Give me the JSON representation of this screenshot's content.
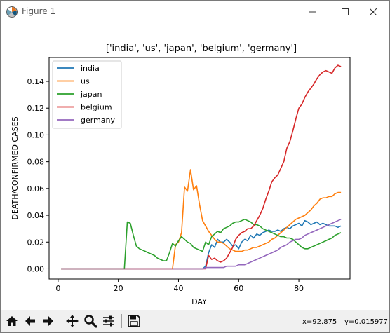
{
  "window": {
    "title": "Figure 1",
    "controls": [
      "minimize",
      "maximize",
      "close"
    ]
  },
  "toolbar": {
    "buttons": [
      {
        "name": "home-button",
        "icon": "home-icon"
      },
      {
        "name": "back-button",
        "icon": "arrow-left-icon"
      },
      {
        "name": "forward-button",
        "icon": "arrow-right-icon"
      },
      {
        "name": "pan-button",
        "icon": "move-arrows-icon"
      },
      {
        "name": "zoom-button",
        "icon": "magnifier-icon"
      },
      {
        "name": "subplots-button",
        "icon": "sliders-icon"
      },
      {
        "name": "save-button",
        "icon": "floppy-disk-icon"
      }
    ],
    "coord_x": "x=92.875",
    "coord_y": "y=0.015977"
  },
  "colors": {
    "india": "#1f77b4",
    "us": "#ff7f0e",
    "japan": "#2ca02c",
    "belgium": "#d62728",
    "germany": "#9467bd"
  },
  "chart_data": {
    "type": "line",
    "title": "['india', 'us', 'japan', 'belgium', 'germany']",
    "xlabel": "DAY",
    "ylabel": "DEATH/CONFIRMED CASES",
    "xlim": [
      -3,
      97
    ],
    "ylim": [
      -0.0076,
      0.1578
    ],
    "xticks": [
      0,
      20,
      40,
      60,
      80
    ],
    "xtick_labels": [
      "0",
      "20",
      "40",
      "60",
      "80"
    ],
    "yticks": [
      0.0,
      0.02,
      0.04,
      0.06,
      0.08,
      0.1,
      0.12,
      0.14
    ],
    "ytick_labels": [
      "0.00",
      "0.02",
      "0.04",
      "0.06",
      "0.08",
      "0.10",
      "0.12",
      "0.14"
    ],
    "grid": false,
    "legend_position": "upper-left",
    "series": [
      {
        "name": "india",
        "color": "#1f77b4",
        "points": [
          [
            1,
            0
          ],
          [
            10,
            0
          ],
          [
            20,
            0
          ],
          [
            30,
            0
          ],
          [
            40,
            0
          ],
          [
            48,
            0
          ],
          [
            49,
            0.002
          ],
          [
            50,
            0.012
          ],
          [
            51,
            0.018
          ],
          [
            52,
            0.016
          ],
          [
            53,
            0.022
          ],
          [
            54,
            0.02
          ],
          [
            55,
            0.02
          ],
          [
            56,
            0.022
          ],
          [
            57,
            0.02
          ],
          [
            58,
            0.017
          ],
          [
            59,
            0.018
          ],
          [
            60,
            0.015
          ],
          [
            61,
            0.02
          ],
          [
            62,
            0.022
          ],
          [
            63,
            0.021
          ],
          [
            64,
            0.025
          ],
          [
            65,
            0.023
          ],
          [
            66,
            0.026
          ],
          [
            67,
            0.025
          ],
          [
            68,
            0.027
          ],
          [
            69,
            0.028
          ],
          [
            70,
            0.029
          ],
          [
            71,
            0.028
          ],
          [
            72,
            0.028
          ],
          [
            73,
            0.029
          ],
          [
            74,
            0.028
          ],
          [
            75,
            0.03
          ],
          [
            76,
            0.031
          ],
          [
            77,
            0.03
          ],
          [
            78,
            0.032
          ],
          [
            79,
            0.033
          ],
          [
            80,
            0.034
          ],
          [
            81,
            0.032
          ],
          [
            82,
            0.036
          ],
          [
            83,
            0.035
          ],
          [
            84,
            0.033
          ],
          [
            85,
            0.034
          ],
          [
            86,
            0.035
          ],
          [
            87,
            0.033
          ],
          [
            88,
            0.034
          ],
          [
            89,
            0.033
          ],
          [
            90,
            0.032
          ],
          [
            91,
            0.032
          ],
          [
            92,
            0.032
          ],
          [
            93,
            0.031
          ],
          [
            94,
            0.032
          ]
        ]
      },
      {
        "name": "us",
        "color": "#ff7f0e",
        "points": [
          [
            1,
            0
          ],
          [
            10,
            0
          ],
          [
            20,
            0
          ],
          [
            30,
            0
          ],
          [
            37,
            0
          ],
          [
            38,
            0
          ],
          [
            39,
            0.018
          ],
          [
            40,
            0.02
          ],
          [
            41,
            0.027
          ],
          [
            42,
            0.061
          ],
          [
            43,
            0.058
          ],
          [
            44,
            0.074
          ],
          [
            45,
            0.059
          ],
          [
            46,
            0.062
          ],
          [
            47,
            0.048
          ],
          [
            48,
            0.036
          ],
          [
            49,
            0.032
          ],
          [
            50,
            0.028
          ],
          [
            51,
            0.025
          ],
          [
            52,
            0.022
          ],
          [
            53,
            0.02
          ],
          [
            54,
            0.02
          ],
          [
            55,
            0.019
          ],
          [
            56,
            0.017
          ],
          [
            57,
            0.015
          ],
          [
            58,
            0.014
          ],
          [
            59,
            0.013
          ],
          [
            60,
            0.013
          ],
          [
            61,
            0.013
          ],
          [
            62,
            0.014
          ],
          [
            63,
            0.014
          ],
          [
            64,
            0.015
          ],
          [
            65,
            0.016
          ],
          [
            66,
            0.016
          ],
          [
            67,
            0.017
          ],
          [
            68,
            0.018
          ],
          [
            69,
            0.019
          ],
          [
            70,
            0.02
          ],
          [
            71,
            0.022
          ],
          [
            72,
            0.023
          ],
          [
            73,
            0.025
          ],
          [
            74,
            0.027
          ],
          [
            75,
            0.029
          ],
          [
            76,
            0.031
          ],
          [
            77,
            0.033
          ],
          [
            78,
            0.035
          ],
          [
            79,
            0.037
          ],
          [
            80,
            0.038
          ],
          [
            81,
            0.039
          ],
          [
            82,
            0.04
          ],
          [
            83,
            0.042
          ],
          [
            84,
            0.044
          ],
          [
            85,
            0.047
          ],
          [
            86,
            0.049
          ],
          [
            87,
            0.052
          ],
          [
            88,
            0.053
          ],
          [
            89,
            0.053
          ],
          [
            90,
            0.054
          ],
          [
            91,
            0.054
          ],
          [
            92,
            0.056
          ],
          [
            93,
            0.057
          ],
          [
            94,
            0.057
          ]
        ]
      },
      {
        "name": "japan",
        "color": "#2ca02c",
        "points": [
          [
            1,
            0
          ],
          [
            10,
            0
          ],
          [
            20,
            0
          ],
          [
            22,
            0
          ],
          [
            23,
            0.035
          ],
          [
            24,
            0.034
          ],
          [
            25,
            0.025
          ],
          [
            26,
            0.017
          ],
          [
            27,
            0.015
          ],
          [
            28,
            0.014
          ],
          [
            29,
            0.013
          ],
          [
            30,
            0.012
          ],
          [
            31,
            0.011
          ],
          [
            32,
            0.01
          ],
          [
            33,
            0.008
          ],
          [
            34,
            0.007
          ],
          [
            35,
            0.006
          ],
          [
            36,
            0.006
          ],
          [
            37,
            0.012
          ],
          [
            38,
            0.019
          ],
          [
            39,
            0.017
          ],
          [
            40,
            0.021
          ],
          [
            41,
            0.024
          ],
          [
            42,
            0.022
          ],
          [
            43,
            0.02
          ],
          [
            44,
            0.019
          ],
          [
            45,
            0.016
          ],
          [
            46,
            0.015
          ],
          [
            47,
            0.014
          ],
          [
            48,
            0.013
          ],
          [
            49,
            0.02
          ],
          [
            50,
            0.018
          ],
          [
            51,
            0.024
          ],
          [
            52,
            0.026
          ],
          [
            53,
            0.028
          ],
          [
            54,
            0.027
          ],
          [
            55,
            0.03
          ],
          [
            56,
            0.031
          ],
          [
            57,
            0.032
          ],
          [
            58,
            0.034
          ],
          [
            59,
            0.035
          ],
          [
            60,
            0.035
          ],
          [
            61,
            0.036
          ],
          [
            62,
            0.037
          ],
          [
            63,
            0.036
          ],
          [
            64,
            0.035
          ],
          [
            65,
            0.033
          ],
          [
            66,
            0.033
          ],
          [
            67,
            0.032
          ],
          [
            68,
            0.03
          ],
          [
            69,
            0.029
          ],
          [
            70,
            0.028
          ],
          [
            71,
            0.027
          ],
          [
            72,
            0.026
          ],
          [
            73,
            0.025
          ],
          [
            74,
            0.024
          ],
          [
            75,
            0.024
          ],
          [
            76,
            0.023
          ],
          [
            77,
            0.023
          ],
          [
            78,
            0.022
          ],
          [
            79,
            0.02
          ],
          [
            80,
            0.018
          ],
          [
            81,
            0.016
          ],
          [
            82,
            0.015
          ],
          [
            83,
            0.015
          ],
          [
            84,
            0.016
          ],
          [
            85,
            0.017
          ],
          [
            86,
            0.018
          ],
          [
            87,
            0.019
          ],
          [
            88,
            0.02
          ],
          [
            89,
            0.021
          ],
          [
            90,
            0.022
          ],
          [
            91,
            0.023
          ],
          [
            92,
            0.025
          ],
          [
            93,
            0.026
          ],
          [
            94,
            0.027
          ]
        ]
      },
      {
        "name": "belgium",
        "color": "#d62728",
        "points": [
          [
            1,
            0
          ],
          [
            10,
            0
          ],
          [
            20,
            0
          ],
          [
            30,
            0
          ],
          [
            40,
            0
          ],
          [
            49,
            0
          ],
          [
            50,
            0.01
          ],
          [
            51,
            0.007
          ],
          [
            52,
            0.008
          ],
          [
            53,
            0.006
          ],
          [
            54,
            0.005
          ],
          [
            55,
            0.006
          ],
          [
            56,
            0.008
          ],
          [
            57,
            0.012
          ],
          [
            58,
            0.016
          ],
          [
            59,
            0.022
          ],
          [
            60,
            0.025
          ],
          [
            61,
            0.027
          ],
          [
            62,
            0.028
          ],
          [
            63,
            0.03
          ],
          [
            64,
            0.03
          ],
          [
            65,
            0.032
          ],
          [
            66,
            0.036
          ],
          [
            67,
            0.04
          ],
          [
            68,
            0.045
          ],
          [
            69,
            0.052
          ],
          [
            70,
            0.058
          ],
          [
            71,
            0.065
          ],
          [
            72,
            0.068
          ],
          [
            73,
            0.07
          ],
          [
            74,
            0.075
          ],
          [
            75,
            0.08
          ],
          [
            76,
            0.09
          ],
          [
            77,
            0.095
          ],
          [
            78,
            0.103
          ],
          [
            79,
            0.112
          ],
          [
            80,
            0.12
          ],
          [
            81,
            0.123
          ],
          [
            82,
            0.128
          ],
          [
            83,
            0.132
          ],
          [
            84,
            0.135
          ],
          [
            85,
            0.138
          ],
          [
            86,
            0.142
          ],
          [
            87,
            0.145
          ],
          [
            88,
            0.147
          ],
          [
            89,
            0.148
          ],
          [
            90,
            0.147
          ],
          [
            91,
            0.146
          ],
          [
            92,
            0.15
          ],
          [
            93,
            0.152
          ],
          [
            94,
            0.151
          ]
        ]
      },
      {
        "name": "germany",
        "color": "#9467bd",
        "points": [
          [
            1,
            0
          ],
          [
            10,
            0
          ],
          [
            20,
            0
          ],
          [
            30,
            0
          ],
          [
            40,
            0
          ],
          [
            47,
            0
          ],
          [
            48,
            0
          ],
          [
            49,
            0.001
          ],
          [
            50,
            0.001
          ],
          [
            51,
            0.001
          ],
          [
            52,
            0.001
          ],
          [
            53,
            0.001
          ],
          [
            54,
            0.001
          ],
          [
            55,
            0.001
          ],
          [
            56,
            0.002
          ],
          [
            57,
            0.002
          ],
          [
            58,
            0.002
          ],
          [
            59,
            0.002
          ],
          [
            60,
            0.003
          ],
          [
            61,
            0.003
          ],
          [
            62,
            0.003
          ],
          [
            63,
            0.004
          ],
          [
            64,
            0.005
          ],
          [
            65,
            0.006
          ],
          [
            66,
            0.007
          ],
          [
            67,
            0.008
          ],
          [
            68,
            0.009
          ],
          [
            69,
            0.01
          ],
          [
            70,
            0.011
          ],
          [
            71,
            0.012
          ],
          [
            72,
            0.013
          ],
          [
            73,
            0.014
          ],
          [
            74,
            0.016
          ],
          [
            75,
            0.017
          ],
          [
            76,
            0.018
          ],
          [
            77,
            0.02
          ],
          [
            78,
            0.021
          ],
          [
            79,
            0.022
          ],
          [
            80,
            0.022
          ],
          [
            81,
            0.023
          ],
          [
            82,
            0.025
          ],
          [
            83,
            0.026
          ],
          [
            84,
            0.027
          ],
          [
            85,
            0.028
          ],
          [
            86,
            0.029
          ],
          [
            87,
            0.03
          ],
          [
            88,
            0.031
          ],
          [
            89,
            0.032
          ],
          [
            90,
            0.033
          ],
          [
            91,
            0.034
          ],
          [
            92,
            0.035
          ],
          [
            93,
            0.036
          ],
          [
            94,
            0.037
          ]
        ]
      }
    ]
  }
}
